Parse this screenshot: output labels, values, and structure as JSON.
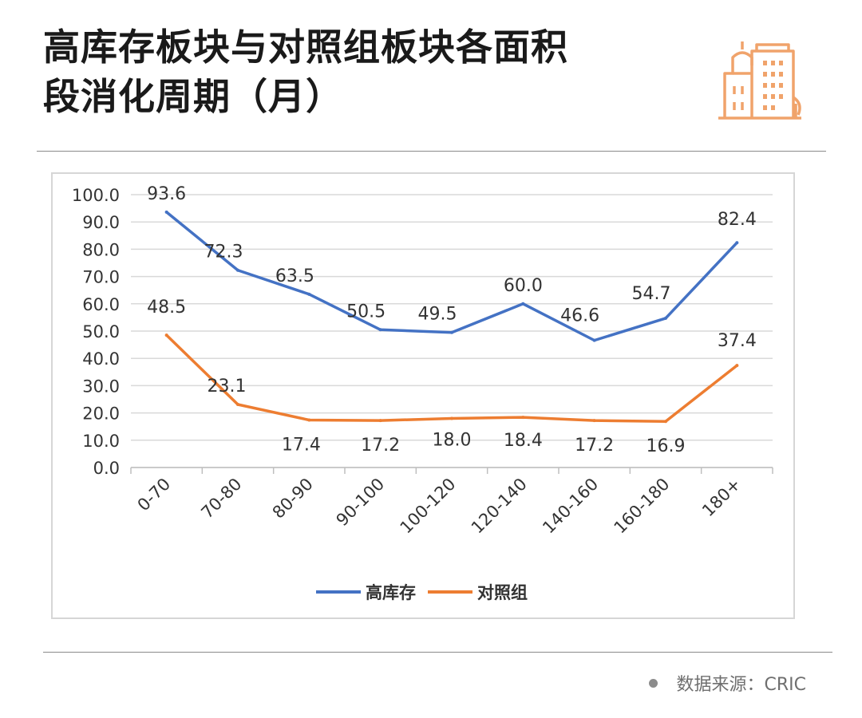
{
  "header": {
    "title_line1": "高库存板块与对照组板块各面积",
    "title_line2": "段消化周期（月）",
    "logo_icon": "city-buildings-icon",
    "logo_color": "#f0a36b"
  },
  "footer": {
    "source_label": "数据来源：CRIC",
    "dot_icon": "bullet-dot-icon"
  },
  "chart_data": {
    "type": "line",
    "title": "",
    "xlabel": "",
    "ylabel": "",
    "categories": [
      "0-70",
      "70-80",
      "80-90",
      "90-100",
      "100-120",
      "120-140",
      "140-160",
      "160-180",
      "180+"
    ],
    "ylim": [
      0,
      100
    ],
    "yticks": [
      "0.0",
      "10.0",
      "20.0",
      "30.0",
      "40.0",
      "50.0",
      "60.0",
      "70.0",
      "80.0",
      "90.0",
      "100.0"
    ],
    "grid": true,
    "legend_position": "bottom",
    "series": [
      {
        "name": "高库存",
        "color": "#4472c4",
        "values": [
          93.6,
          72.3,
          63.5,
          50.5,
          49.5,
          60.0,
          46.6,
          54.7,
          82.4
        ],
        "labels": [
          "93.6",
          "72.3",
          "63.5",
          "50.5",
          "49.5",
          "60.0",
          "46.6",
          "54.7",
          "82.4"
        ]
      },
      {
        "name": "对照组",
        "color": "#ed7d31",
        "values": [
          48.5,
          23.1,
          17.4,
          17.2,
          18.0,
          18.4,
          17.2,
          16.9,
          37.4
        ],
        "labels": [
          "48.5",
          "23.1",
          "17.4",
          "17.2",
          "18.0",
          "18.4",
          "17.2",
          "16.9",
          "37.4"
        ]
      }
    ]
  }
}
